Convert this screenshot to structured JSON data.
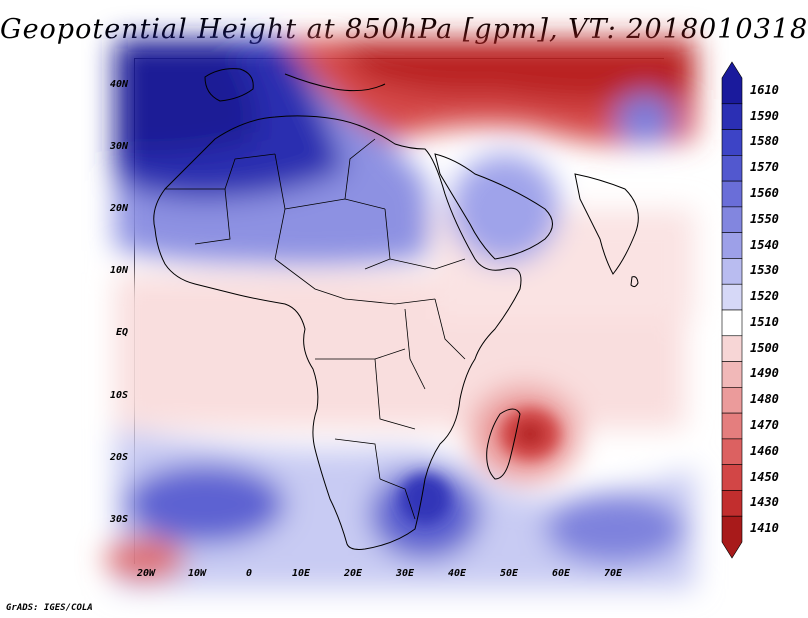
{
  "title": "Geopotential Height at 850hPa [gpm], VT: 2018010318",
  "credit": "GrADS: IGES/COLA",
  "map": {
    "lat_labels": [
      "40N",
      "30N",
      "20N",
      "10N",
      "EQ",
      "10S",
      "20S",
      "30S"
    ],
    "lon_labels": [
      "20W",
      "10W",
      "0",
      "10E",
      "20E",
      "30E",
      "40E",
      "50E",
      "60E",
      "70E"
    ],
    "features": [
      "coastlines",
      "country-borders"
    ]
  },
  "colorbar": {
    "labels": [
      "1610",
      "1590",
      "1580",
      "1570",
      "1560",
      "1550",
      "1540",
      "1530",
      "1520",
      "1510",
      "1500",
      "1490",
      "1480",
      "1470",
      "1460",
      "1450",
      "1430",
      "1410"
    ],
    "colors": [
      "#1a1a9c",
      "#2b2fb4",
      "#3d44c6",
      "#5258cf",
      "#6a6ed8",
      "#8286df",
      "#9da0e8",
      "#b9bcf0",
      "#d6d8f7",
      "#ffffff",
      "#f7d6d6",
      "#f1b8b8",
      "#eb9b9b",
      "#e47e7e",
      "#dc6161",
      "#d24646",
      "#c22e2e",
      "#a81a1a"
    ]
  }
}
